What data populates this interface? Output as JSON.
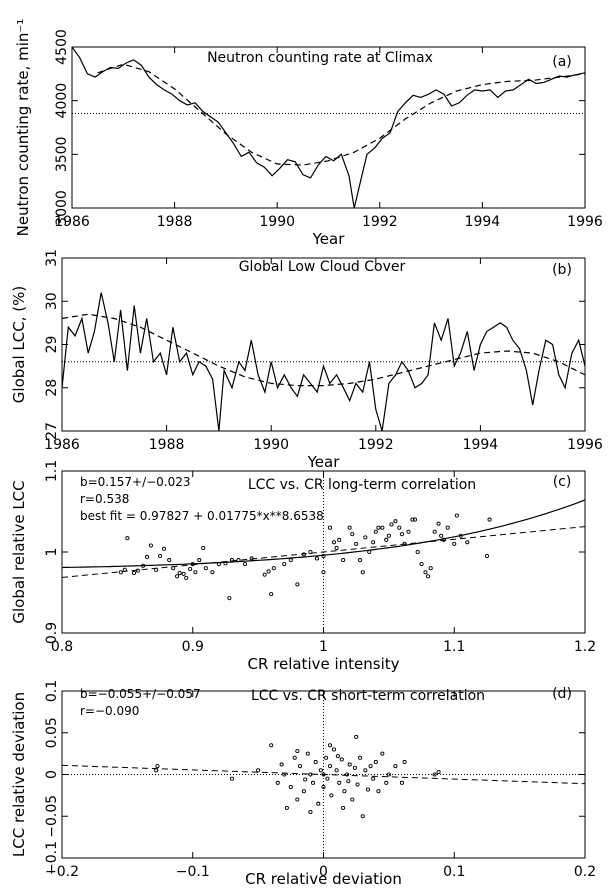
{
  "chart_data": [
    {
      "panel": "(a)",
      "type": "line",
      "title": "Neutron counting rate at Climax",
      "xlabel": "Year",
      "ylabel": "Neutron counting rate, min⁻¹",
      "xlim": [
        1986,
        1996
      ],
      "ylim": [
        3000,
        4500
      ],
      "xticks": [
        1986,
        1988,
        1990,
        1992,
        1994,
        1996
      ],
      "yticks": [
        3000,
        3500,
        4000,
        4500
      ],
      "reference_line": 3880,
      "series": [
        {
          "style": "solid",
          "x": [
            1986.0,
            1986.15,
            1986.3,
            1986.45,
            1986.6,
            1986.75,
            1986.9,
            1987.05,
            1987.2,
            1987.35,
            1987.5,
            1987.65,
            1987.8,
            1987.95,
            1988.1,
            1988.25,
            1988.4,
            1988.55,
            1988.7,
            1988.85,
            1989.0,
            1989.15,
            1989.3,
            1989.45,
            1989.6,
            1989.75,
            1989.9,
            1990.05,
            1990.2,
            1990.35,
            1990.5,
            1990.65,
            1990.8,
            1990.95,
            1991.1,
            1991.25,
            1991.4,
            1991.5,
            1991.6,
            1991.75,
            1991.9,
            1992.05,
            1992.2,
            1992.35,
            1992.5,
            1992.65,
            1992.8,
            1992.95,
            1993.1,
            1993.25,
            1993.4,
            1993.55,
            1993.7,
            1993.85,
            1994.0,
            1994.15,
            1994.3,
            1994.45,
            1994.6,
            1994.75,
            1994.9,
            1995.05,
            1995.2,
            1995.35,
            1995.5,
            1995.65,
            1995.8,
            1996.0
          ],
          "y": [
            4500,
            4400,
            4250,
            4220,
            4270,
            4310,
            4300,
            4350,
            4380,
            4330,
            4220,
            4150,
            4100,
            4060,
            4000,
            3960,
            3980,
            3900,
            3850,
            3800,
            3700,
            3600,
            3480,
            3520,
            3420,
            3380,
            3300,
            3370,
            3450,
            3430,
            3310,
            3280,
            3400,
            3480,
            3440,
            3500,
            3300,
            3000,
            3200,
            3500,
            3560,
            3650,
            3700,
            3900,
            3980,
            4050,
            4030,
            4060,
            4100,
            4060,
            3950,
            3980,
            4050,
            4100,
            4090,
            4100,
            4030,
            4090,
            4100,
            4150,
            4200,
            4160,
            4170,
            4200,
            4230,
            4220,
            4240,
            4260
          ]
        },
        {
          "style": "dashed",
          "x": [
            1986.5,
            1987.0,
            1987.5,
            1988.0,
            1988.5,
            1989.0,
            1989.5,
            1990.0,
            1990.5,
            1991.0,
            1991.5,
            1992.0,
            1992.5,
            1993.0,
            1993.5,
            1994.0,
            1994.5,
            1995.0,
            1995.5,
            1996.0
          ],
          "y": [
            4260,
            4340,
            4270,
            4110,
            3900,
            3690,
            3520,
            3410,
            3400,
            3440,
            3520,
            3650,
            3830,
            3980,
            4090,
            4150,
            4180,
            4190,
            4220,
            4250
          ]
        }
      ]
    },
    {
      "panel": "(b)",
      "type": "line",
      "title": "Global Low Cloud Cover",
      "xlabel": "Year",
      "ylabel": "Global LCC, (%)",
      "xlim": [
        1986,
        1996
      ],
      "ylim": [
        27,
        31
      ],
      "xticks": [
        1986,
        1988,
        1990,
        1992,
        1994,
        1996
      ],
      "yticks": [
        27,
        28,
        29,
        30,
        31
      ],
      "reference_line": 28.6,
      "series": [
        {
          "style": "solid",
          "x": [
            1986.0,
            1986.12,
            1986.25,
            1986.38,
            1986.5,
            1986.62,
            1986.75,
            1986.88,
            1987.0,
            1987.12,
            1987.25,
            1987.38,
            1987.5,
            1987.62,
            1987.75,
            1987.88,
            1988.0,
            1988.12,
            1988.25,
            1988.38,
            1988.5,
            1988.62,
            1988.75,
            1988.88,
            1989.0,
            1989.1,
            1989.25,
            1989.38,
            1989.5,
            1989.62,
            1989.75,
            1989.88,
            1990.0,
            1990.12,
            1990.25,
            1990.38,
            1990.5,
            1990.62,
            1990.75,
            1990.88,
            1991.0,
            1991.12,
            1991.25,
            1991.38,
            1991.5,
            1991.62,
            1991.75,
            1991.88,
            1992.0,
            1992.12,
            1992.25,
            1992.38,
            1992.5,
            1992.62,
            1992.75,
            1992.88,
            1993.0,
            1993.12,
            1993.25,
            1993.38,
            1993.5,
            1993.62,
            1993.75,
            1993.88,
            1994.0,
            1994.12,
            1994.25,
            1994.38,
            1994.5,
            1994.62,
            1994.75,
            1994.88,
            1995.0,
            1995.12,
            1995.25,
            1995.38,
            1995.5,
            1995.62,
            1995.75,
            1995.88,
            1996.0
          ],
          "y": [
            28.0,
            29.4,
            29.2,
            29.6,
            28.8,
            29.3,
            30.2,
            29.5,
            28.6,
            29.8,
            28.4,
            29.9,
            28.8,
            29.6,
            28.6,
            28.8,
            28.3,
            29.4,
            28.6,
            28.8,
            28.3,
            28.6,
            28.5,
            28.2,
            27.0,
            28.4,
            28.0,
            28.6,
            28.4,
            29.1,
            28.3,
            27.9,
            28.6,
            28.0,
            28.3,
            28.0,
            27.8,
            28.3,
            28.1,
            27.9,
            28.5,
            28.1,
            28.3,
            28.0,
            27.7,
            28.1,
            27.9,
            28.6,
            27.5,
            27.0,
            28.1,
            28.3,
            28.6,
            28.4,
            28.0,
            28.1,
            28.3,
            29.5,
            29.1,
            29.6,
            28.5,
            28.8,
            29.3,
            28.4,
            29.0,
            29.3,
            29.4,
            29.5,
            29.4,
            29.1,
            28.9,
            28.4,
            27.6,
            28.4,
            29.1,
            29.0,
            28.3,
            28.0,
            28.8,
            29.1,
            28.5
          ]
        },
        {
          "style": "dashed",
          "x": [
            1986.0,
            1986.5,
            1987.0,
            1987.5,
            1988.0,
            1988.5,
            1989.0,
            1989.5,
            1990.0,
            1990.5,
            1991.0,
            1991.5,
            1992.0,
            1992.5,
            1993.0,
            1993.5,
            1994.0,
            1994.5,
            1995.0,
            1995.5,
            1996.0
          ],
          "y": [
            29.6,
            29.7,
            29.6,
            29.4,
            29.1,
            28.8,
            28.5,
            28.25,
            28.1,
            28.05,
            28.05,
            28.1,
            28.2,
            28.35,
            28.5,
            28.65,
            28.8,
            28.85,
            28.8,
            28.6,
            28.3
          ]
        }
      ]
    },
    {
      "panel": "(c)",
      "type": "scatter",
      "title": "LCC vs. CR long-term correlation",
      "annotations": [
        "b=0.157+/−0.023",
        "r=0.538",
        "best fit = 0.97827 + 0.01775*x**8.6538"
      ],
      "xlabel": "CR relative intensity",
      "ylabel": "Global relative LCC",
      "xlim": [
        0.8,
        1.2
      ],
      "ylim": [
        0.9,
        1.1
      ],
      "xticks": [
        0.8,
        0.9,
        1,
        1.1,
        1.2
      ],
      "yticks": [
        0.9,
        1,
        1.1
      ],
      "reference_x": 1.0,
      "fit_intercept": 0.97827,
      "fit_coeff": 0.01775,
      "fit_exponent": 8.6538,
      "linear_slope": 0.157,
      "points": [
        [
          0.845,
          0.975
        ],
        [
          0.848,
          0.978
        ],
        [
          0.85,
          1.017
        ],
        [
          0.855,
          0.974
        ],
        [
          0.858,
          0.977
        ],
        [
          0.862,
          0.983
        ],
        [
          0.865,
          0.994
        ],
        [
          0.868,
          1.008
        ],
        [
          0.872,
          0.978
        ],
        [
          0.875,
          0.995
        ],
        [
          0.878,
          1.004
        ],
        [
          0.882,
          0.99
        ],
        [
          0.885,
          0.98
        ],
        [
          0.888,
          0.97
        ],
        [
          0.89,
          0.974
        ],
        [
          0.893,
          0.973
        ],
        [
          0.895,
          0.968
        ],
        [
          0.898,
          0.979
        ],
        [
          0.9,
          0.985
        ],
        [
          0.902,
          0.975
        ],
        [
          0.905,
          0.99
        ],
        [
          0.908,
          1.005
        ],
        [
          0.91,
          0.98
        ],
        [
          0.915,
          0.975
        ],
        [
          0.92,
          0.985
        ],
        [
          0.925,
          0.986
        ],
        [
          0.928,
          0.943
        ],
        [
          0.93,
          0.99
        ],
        [
          0.935,
          0.99
        ],
        [
          0.94,
          0.985
        ],
        [
          0.945,
          0.992
        ],
        [
          0.955,
          0.972
        ],
        [
          0.958,
          0.976
        ],
        [
          0.96,
          0.948
        ],
        [
          0.962,
          0.98
        ],
        [
          0.97,
          0.985
        ],
        [
          0.975,
          0.99
        ],
        [
          0.98,
          0.96
        ],
        [
          0.985,
          0.997
        ],
        [
          0.99,
          1.0
        ],
        [
          0.995,
          0.992
        ],
        [
          1.0,
          0.995
        ],
        [
          1.0,
          0.975
        ],
        [
          1.005,
          1.03
        ],
        [
          1.008,
          1.012
        ],
        [
          1.01,
          1.005
        ],
        [
          1.012,
          1.015
        ],
        [
          1.015,
          0.99
        ],
        [
          1.02,
          1.03
        ],
        [
          1.022,
          1.022
        ],
        [
          1.025,
          1.01
        ],
        [
          1.028,
          0.99
        ],
        [
          1.03,
          0.975
        ],
        [
          1.032,
          1.018
        ],
        [
          1.035,
          1.0
        ],
        [
          1.038,
          1.012
        ],
        [
          1.04,
          1.025
        ],
        [
          1.042,
          1.03
        ],
        [
          1.045,
          1.03
        ],
        [
          1.048,
          1.015
        ],
        [
          1.05,
          1.02
        ],
        [
          1.052,
          1.034
        ],
        [
          1.055,
          1.038
        ],
        [
          1.058,
          1.03
        ],
        [
          1.06,
          1.022
        ],
        [
          1.062,
          1.01
        ],
        [
          1.065,
          1.025
        ],
        [
          1.068,
          1.04
        ],
        [
          1.07,
          1.04
        ],
        [
          1.072,
          1.0
        ],
        [
          1.075,
          0.985
        ],
        [
          1.078,
          0.975
        ],
        [
          1.08,
          0.97
        ],
        [
          1.082,
          0.98
        ],
        [
          1.085,
          1.025
        ],
        [
          1.088,
          1.035
        ],
        [
          1.09,
          1.02
        ],
        [
          1.092,
          1.015
        ],
        [
          1.095,
          1.03
        ],
        [
          1.1,
          1.01
        ],
        [
          1.102,
          1.045
        ],
        [
          1.105,
          1.02
        ],
        [
          1.11,
          1.012
        ],
        [
          1.125,
          0.995
        ],
        [
          1.127,
          1.04
        ]
      ]
    },
    {
      "panel": "(d)",
      "type": "scatter",
      "title": "LCC vs. CR short-term correlation",
      "annotations": [
        "b=−0.055+/−0.057",
        "r=−0.090"
      ],
      "xlabel": "CR relative deviation",
      "ylabel": "LCC relative deviation",
      "xlim": [
        -0.2,
        0.2
      ],
      "ylim": [
        -0.1,
        0.1
      ],
      "xticks": [
        -0.2,
        -0.1,
        0,
        0.1,
        0.2
      ],
      "xtick_labels": [
        "−0.2",
        "−0.1",
        "0",
        "0.1",
        "0.2"
      ],
      "yticks": [
        -0.1,
        -0.05,
        0,
        0.05,
        0.1
      ],
      "ytick_labels": [
        "−0.1",
        "−0.05",
        "0",
        "0.05",
        "0.1"
      ],
      "reference_x": 0,
      "reference_y": 0,
      "linear_slope": -0.055,
      "points": [
        [
          -0.127,
          0.01
        ],
        [
          -0.128,
          0.005
        ],
        [
          -0.07,
          -0.005
        ],
        [
          -0.05,
          0.005
        ],
        [
          -0.04,
          0.035
        ],
        [
          -0.035,
          -0.01
        ],
        [
          -0.03,
          0.0
        ],
        [
          -0.025,
          -0.015
        ],
        [
          -0.022,
          0.02
        ],
        [
          -0.02,
          -0.03
        ],
        [
          -0.018,
          0.01
        ],
        [
          -0.015,
          -0.02
        ],
        [
          -0.012,
          0.025
        ],
        [
          -0.01,
          0.0
        ],
        [
          -0.008,
          -0.01
        ],
        [
          -0.006,
          0.015
        ],
        [
          -0.004,
          -0.035
        ],
        [
          -0.002,
          0.005
        ],
        [
          0.0,
          0.0
        ],
        [
          0.0,
          -0.015
        ],
        [
          0.002,
          0.02
        ],
        [
          0.003,
          -0.005
        ],
        [
          0.005,
          0.01
        ],
        [
          0.006,
          -0.025
        ],
        [
          0.008,
          0.03
        ],
        [
          0.01,
          0.005
        ],
        [
          0.012,
          -0.01
        ],
        [
          0.014,
          0.018
        ],
        [
          0.016,
          -0.02
        ],
        [
          0.018,
          0.0
        ],
        [
          0.02,
          0.012
        ],
        [
          0.022,
          -0.03
        ],
        [
          0.024,
          0.008
        ],
        [
          0.026,
          -0.012
        ],
        [
          0.028,
          0.02
        ],
        [
          0.03,
          -0.05
        ],
        [
          0.032,
          0.005
        ],
        [
          0.034,
          -0.018
        ],
        [
          0.036,
          0.01
        ],
        [
          0.038,
          -0.005
        ],
        [
          0.04,
          0.015
        ],
        [
          0.042,
          -0.02
        ],
        [
          0.045,
          0.025
        ],
        [
          0.048,
          -0.01
        ],
        [
          0.05,
          0.0
        ],
        [
          0.055,
          0.01
        ],
        [
          0.06,
          -0.01
        ],
        [
          0.062,
          0.015
        ],
        [
          0.085,
          0.0
        ],
        [
          0.088,
          0.003
        ],
        [
          -0.028,
          -0.04
        ],
        [
          -0.02,
          0.028
        ],
        [
          -0.01,
          -0.045
        ],
        [
          0.005,
          0.035
        ],
        [
          0.015,
          -0.04
        ],
        [
          0.025,
          0.045
        ],
        [
          -0.032,
          0.012
        ],
        [
          -0.014,
          -0.006
        ],
        [
          0.011,
          0.022
        ],
        [
          0.019,
          -0.008
        ]
      ]
    }
  ]
}
